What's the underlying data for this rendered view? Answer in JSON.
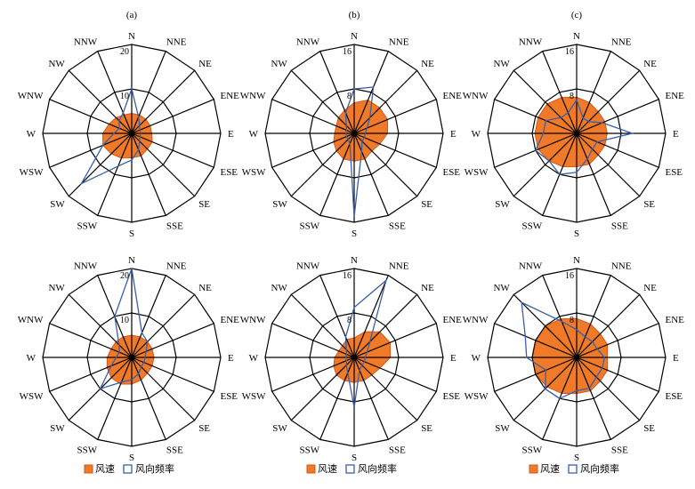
{
  "colors": {
    "speed_fill": "#f07a28",
    "speed_stroke": "#d4561a",
    "freq_stroke": "#3b5ea8",
    "grid": "#000000"
  },
  "chart_data": [
    {
      "type": "radar",
      "label": "(a)",
      "rmax": 20,
      "ring_labels": [
        "10",
        "20"
      ],
      "directions": [
        "N",
        "NNE",
        "NE",
        "ENE",
        "E",
        "ESE",
        "SE",
        "SSE",
        "S",
        "SSW",
        "SW",
        "WSW",
        "W",
        "WNW",
        "NW",
        "NNW"
      ],
      "series": [
        {
          "name": "风速",
          "values": [
            4.5,
            4.5,
            4.5,
            4.5,
            4.5,
            5,
            5,
            5.5,
            5.5,
            6,
            6.5,
            7,
            6.5,
            5.5,
            5,
            4.5
          ]
        },
        {
          "name": "风向频率",
          "values": [
            10,
            4,
            2.5,
            2,
            2,
            2,
            2.5,
            4,
            6,
            8,
            16,
            7,
            4,
            3,
            4,
            5
          ]
        }
      ]
    },
    {
      "type": "radar",
      "label": "(b)",
      "rmax": 16,
      "ring_labels": [
        "8",
        "16"
      ],
      "directions": [
        "N",
        "NNE",
        "NE",
        "ENE",
        "E",
        "ESE",
        "SE",
        "SSE",
        "S",
        "SSW",
        "SW",
        "WSW",
        "W",
        "WNW",
        "NW",
        "NNW"
      ],
      "series": [
        {
          "name": "风速",
          "values": [
            5.5,
            6.5,
            6.5,
            6.5,
            6,
            5,
            4.5,
            5,
            5,
            5,
            4.5,
            4,
            3.5,
            3.5,
            4,
            4.5
          ]
        },
        {
          "name": "风向频率",
          "values": [
            8,
            9,
            4,
            2.5,
            2,
            2,
            2,
            3.5,
            15,
            2,
            1.5,
            1.5,
            1.5,
            1.5,
            2,
            4
          ]
        }
      ]
    },
    {
      "type": "radar",
      "label": "(c)",
      "rmax": 16,
      "ring_labels": [
        "8",
        "16"
      ],
      "directions": [
        "N",
        "NNE",
        "NE",
        "ENE",
        "E",
        "ESE",
        "SE",
        "SSE",
        "S",
        "SSW",
        "SW",
        "WSW",
        "W",
        "WNW",
        "NW",
        "NNW"
      ],
      "series": [
        {
          "name": "风速",
          "values": [
            6.5,
            6,
            5.5,
            5.5,
            5.5,
            5.5,
            5.5,
            6,
            6,
            6.5,
            7,
            7.5,
            7.5,
            7.5,
            7.5,
            7
          ]
        },
        {
          "name": "风向频率",
          "values": [
            6,
            3,
            3,
            5,
            10,
            4,
            4,
            5,
            7,
            8,
            7,
            8,
            6,
            6,
            4,
            4
          ]
        }
      ]
    },
    {
      "type": "radar",
      "label": "",
      "rmax": 20,
      "ring_labels": [
        "10",
        "20"
      ],
      "directions": [
        "N",
        "NNE",
        "NE",
        "ENE",
        "E",
        "ESE",
        "SE",
        "SSE",
        "S",
        "SSW",
        "SW",
        "WSW",
        "W",
        "WNW",
        "NW",
        "NNW"
      ],
      "series": [
        {
          "name": "风速",
          "values": [
            5,
            5,
            5,
            5,
            5,
            5,
            5,
            5.5,
            6,
            6.5,
            6.5,
            6,
            5.5,
            5,
            5,
            5
          ]
        },
        {
          "name": "风向频率",
          "values": [
            20,
            6,
            5,
            3.5,
            3,
            3,
            3,
            4,
            5,
            6,
            10,
            5,
            3.5,
            3,
            4,
            10
          ]
        }
      ]
    },
    {
      "type": "radar",
      "label": "",
      "rmax": 16,
      "ring_labels": [
        "8",
        "16"
      ],
      "directions": [
        "N",
        "NNE",
        "NE",
        "ENE",
        "E",
        "ESE",
        "SE",
        "SSE",
        "S",
        "SSW",
        "SW",
        "WSW",
        "W",
        "WNW",
        "NW",
        "NNW"
      ],
      "series": [
        {
          "name": "风速",
          "values": [
            3.5,
            5,
            6.5,
            7,
            6.5,
            5,
            4.5,
            4.5,
            4.5,
            4.5,
            4.5,
            4,
            3.5,
            3,
            3,
            3.5
          ]
        },
        {
          "name": "风向频率",
          "values": [
            9,
            15,
            4,
            2.5,
            2,
            2,
            2,
            2.5,
            9,
            3,
            2,
            1.5,
            1.5,
            1.5,
            2,
            4
          ]
        }
      ]
    },
    {
      "type": "radar",
      "label": "",
      "rmax": 16,
      "ring_labels": [
        "8",
        "16"
      ],
      "directions": [
        "N",
        "NNE",
        "NE",
        "ENE",
        "E",
        "ESE",
        "SE",
        "SSE",
        "S",
        "SSW",
        "SW",
        "WSW",
        "W",
        "WNW",
        "NW",
        "NNW"
      ],
      "series": [
        {
          "name": "风速",
          "values": [
            7,
            6.5,
            6,
            6,
            5.5,
            6,
            6,
            6.5,
            6.5,
            7,
            7.5,
            8,
            8,
            8,
            8,
            7.5
          ]
        },
        {
          "name": "风向频率",
          "values": [
            5,
            4,
            4,
            4,
            5,
            5,
            5,
            6,
            6,
            8,
            8,
            6,
            9,
            10,
            14,
            7
          ]
        }
      ]
    }
  ],
  "legends": [
    {
      "speed": "风速",
      "freq": "风向频率"
    },
    {
      "speed": "风速",
      "freq": "风向频率"
    },
    {
      "speed": "风速",
      "freq": "风向频率"
    }
  ]
}
